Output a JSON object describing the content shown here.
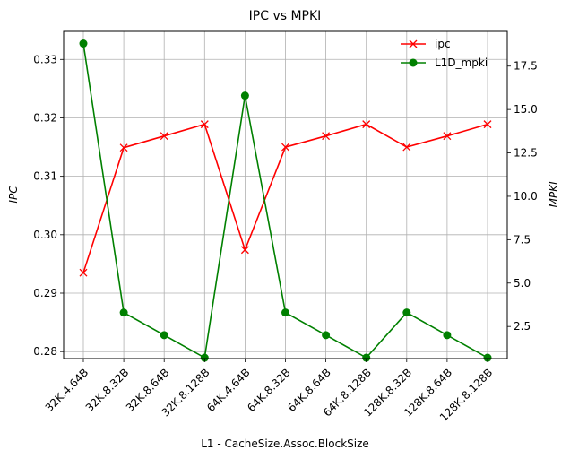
{
  "chart_data": {
    "type": "line",
    "title": "IPC vs MPKI",
    "xlabel": "L1 - CacheSize.Assoc.BlockSize",
    "ylabel_left": "IPC",
    "ylabel_right": "MPKI",
    "categories": [
      "32K.4.64B",
      "32K.8.32B",
      "32K.8.64B",
      "32K.8.128B",
      "64K.4.64B",
      "64K.8.32B",
      "64K.8.64B",
      "64K.8.128B",
      "128K.8.32B",
      "128K.8.64B",
      "128K.8.128B"
    ],
    "ylim_left": [
      0.2788,
      0.3348
    ],
    "ylim_right": [
      0.65,
      19.5
    ],
    "yticks_left": [
      "0.28",
      "0.29",
      "0.30",
      "0.31",
      "0.32",
      "0.33"
    ],
    "yticks_right": [
      "2.5",
      "5.0",
      "7.5",
      "10.0",
      "12.5",
      "15.0",
      "17.5"
    ],
    "grid": true,
    "legend_position": "top-right",
    "series": [
      {
        "name": "ipc",
        "axis": "left",
        "color": "#ff0000",
        "marker": "x",
        "values": [
          0.2935,
          0.3149,
          0.3169,
          0.3189,
          0.2974,
          0.315,
          0.3169,
          0.3189,
          0.315,
          0.3169,
          0.3189
        ]
      },
      {
        "name": "L1D_mpki",
        "axis": "right",
        "color": "#008000",
        "marker": "o",
        "values": [
          18.8,
          3.3,
          2.0,
          0.7,
          15.8,
          3.3,
          2.0,
          0.7,
          3.3,
          2.0,
          0.7
        ]
      }
    ]
  }
}
